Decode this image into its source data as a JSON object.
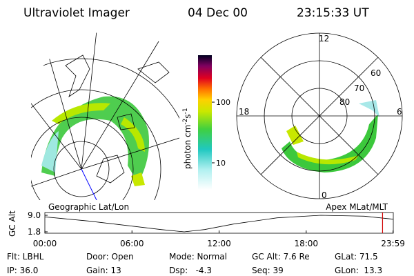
{
  "header": {
    "instrument": "Ultraviolet Imager",
    "date": "04 Dec 00",
    "time": "23:15:33 UT"
  },
  "colorbar": {
    "label": "photon cm",
    "exp1": "-2",
    "unit2": "s",
    "exp2": "-1",
    "log_scale": true,
    "lim": [
      3.6,
      594
    ],
    "ticks": [
      10,
      100
    ]
  },
  "polar": {
    "mlt": [
      "12",
      "18",
      "6",
      "0"
    ],
    "mlat": [
      "60",
      "70",
      "80"
    ]
  },
  "panels": {
    "left": "Geographic Lat/Lon",
    "right": "Apex MLat/MLT"
  },
  "altitude": {
    "label": "GC Alt",
    "ylim": [
      1.8,
      9.0
    ],
    "yticks": [
      {
        "value": 9.0,
        "label": "9.0"
      },
      1.8
    ],
    "xlim": [
      0,
      24
    ],
    "xticks": [
      {
        "value": 0,
        "label": "00:00"
      },
      {
        "value": 6,
        "label": "06:00"
      },
      {
        "value": 12,
        "label": "12:00"
      },
      {
        "value": 18,
        "label": "18:00"
      },
      {
        "value": 23.98,
        "label": "23:59"
      }
    ],
    "hours": [
      0,
      3,
      6,
      8,
      9.6,
      11,
      13,
      16,
      19,
      22,
      24
    ],
    "alt": [
      8.3,
      6.5,
      4.3,
      2.8,
      1.8,
      2.8,
      5.2,
      7.9,
      9.0,
      8.6,
      7.3
    ],
    "current_hour": 23.26
  },
  "info": [
    [
      "Flt: LBHL",
      "Door: Open",
      "Mode: Normal",
      "GC Alt: 7.6 Re",
      "GLat: 71.5"
    ],
    [
      "IP: 36.0",
      "Gain: 13",
      "Dsp:   -4.3",
      "Seq: 39",
      "GLon:  13.3"
    ]
  ]
}
